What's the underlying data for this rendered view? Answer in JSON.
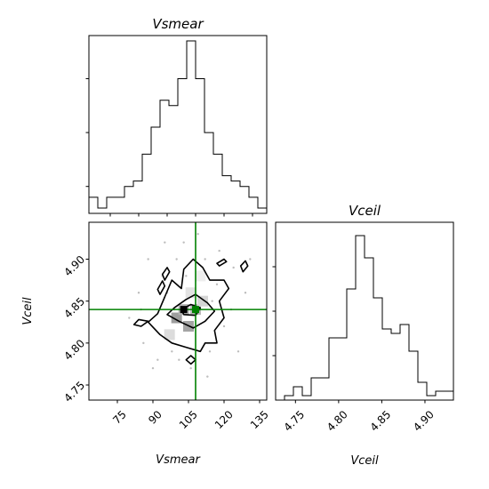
{
  "chart_data": [
    {
      "panel": "top-left",
      "type": "histogram",
      "title": "Vsmear",
      "xlim": [
        63,
        138
      ],
      "ylim": [
        0,
        33
      ],
      "grid": false,
      "bin_edges": [
        63,
        66.75,
        70.5,
        74.25,
        78,
        81.75,
        85.5,
        89.25,
        93,
        96.75,
        100.5,
        104.25,
        108,
        111.75,
        115.5,
        119.25,
        123,
        126.75,
        130.5,
        134.25,
        138
      ],
      "counts": [
        3,
        1,
        3,
        3,
        5,
        6,
        11,
        16,
        21,
        20,
        25,
        32,
        25,
        15,
        11,
        7,
        6,
        5,
        3,
        1
      ]
    },
    {
      "panel": "bottom-right",
      "type": "histogram",
      "title": "Vceil",
      "xlabel": "Vceil",
      "xlim": [
        4.727,
        4.933
      ],
      "ylim": [
        0,
        40
      ],
      "grid": false,
      "x_ticks": [
        "4.75",
        "4.80",
        "4.85",
        "4.90"
      ],
      "bin_edges": [
        4.727,
        4.7373,
        4.7476,
        4.7579,
        4.7682,
        4.7785,
        4.7888,
        4.7991,
        4.8094,
        4.8197,
        4.83,
        4.8403,
        4.8506,
        4.8609,
        4.8712,
        4.8815,
        4.8918,
        4.9021,
        4.9124,
        4.9227,
        4.933
      ],
      "counts": [
        0,
        1,
        3,
        1,
        5,
        5,
        14,
        14,
        25,
        37,
        32,
        23,
        16,
        15,
        17,
        11,
        4,
        1,
        2,
        2
      ]
    },
    {
      "panel": "bottom-left",
      "type": "scatter",
      "subtype": "2d-density-contour",
      "xlabel": "Vsmear",
      "ylabel": "Vceil",
      "xlim": [
        63,
        138
      ],
      "ylim": [
        4.732,
        4.944
      ],
      "grid": false,
      "x_ticks": [
        "75",
        "90",
        "105",
        "120",
        "135"
      ],
      "y_ticks": [
        "4.75",
        "4.80",
        "4.85",
        "4.90"
      ],
      "truth": {
        "x": 108,
        "y": 4.84,
        "color": "#008000"
      },
      "density_cells": [
        {
          "x": 100,
          "y": 4.83,
          "level": 0.7
        },
        {
          "x": 103,
          "y": 4.84,
          "level": 0.55
        },
        {
          "x": 105,
          "y": 4.82,
          "level": 0.65
        },
        {
          "x": 108,
          "y": 4.84,
          "level": 0.5
        },
        {
          "x": 111,
          "y": 4.85,
          "level": 0.3
        },
        {
          "x": 106,
          "y": 4.86,
          "level": 0.2
        },
        {
          "x": 97,
          "y": 4.81,
          "level": 0.25
        },
        {
          "x": 110,
          "y": 4.88,
          "level": 0.12
        }
      ],
      "points": [
        [
          80,
          4.83
        ],
        [
          84,
          4.86
        ],
        [
          86,
          4.8
        ],
        [
          88,
          4.9
        ],
        [
          92,
          4.78
        ],
        [
          94,
          4.88
        ],
        [
          96,
          4.86
        ],
        [
          98,
          4.79
        ],
        [
          100,
          4.9
        ],
        [
          103,
          4.92
        ],
        [
          106,
          4.77
        ],
        [
          112,
          4.9
        ],
        [
          114,
          4.79
        ],
        [
          117,
          4.87
        ],
        [
          120,
          4.82
        ],
        [
          123,
          4.84
        ],
        [
          126,
          4.79
        ],
        [
          129,
          4.86
        ],
        [
          131,
          4.9
        ],
        [
          118,
          4.91
        ],
        [
          90,
          4.77
        ],
        [
          95,
          4.92
        ],
        [
          109,
          4.93
        ],
        [
          85,
          4.84
        ],
        [
          124,
          4.89
        ],
        [
          113,
          4.76
        ],
        [
          104,
          4.88
        ],
        [
          101,
          4.78
        ],
        [
          115,
          4.85
        ],
        [
          99,
          4.84
        ]
      ],
      "contours": [
        {
          "level": "outer",
          "points": [
            [
              95,
              4.855
            ],
            [
              98,
              4.875
            ],
            [
              102,
              4.865
            ],
            [
              103,
              4.888
            ],
            [
              107,
              4.9
            ],
            [
              111,
              4.89
            ],
            [
              114,
              4.875
            ],
            [
              120,
              4.875
            ],
            [
              122,
              4.865
            ],
            [
              118,
              4.85
            ],
            [
              120,
              4.83
            ],
            [
              116,
              4.815
            ],
            [
              117,
              4.8
            ],
            [
              112,
              4.8
            ],
            [
              110,
              4.79
            ],
            [
              104,
              4.795
            ],
            [
              98,
              4.8
            ],
            [
              93,
              4.81
            ],
            [
              88,
              4.825
            ],
            [
              92,
              4.835
            ]
          ]
        },
        {
          "level": "inner",
          "points": [
            [
              99,
              4.842
            ],
            [
              104,
              4.852
            ],
            [
              108,
              4.858
            ],
            [
              113,
              4.848
            ],
            [
              116,
              4.838
            ],
            [
              112,
              4.826
            ],
            [
              107,
              4.818
            ],
            [
              101,
              4.826
            ],
            [
              96,
              4.834
            ]
          ]
        },
        {
          "level": "core",
          "points": [
            [
              102,
              4.84
            ],
            [
              106,
              4.846
            ],
            [
              110,
              4.842
            ],
            [
              108,
              4.833
            ],
            [
              103,
              4.834
            ]
          ]
        },
        {
          "level": "island",
          "points": [
            [
              85,
              4.82
            ],
            [
              88,
              4.826
            ],
            [
              84,
              4.828
            ],
            [
              82,
              4.822
            ]
          ]
        },
        {
          "level": "island",
          "points": [
            [
              93,
              4.858
            ],
            [
              95,
              4.868
            ],
            [
              94,
              4.874
            ],
            [
              92,
              4.864
            ]
          ]
        },
        {
          "level": "island",
          "points": [
            [
              118,
              4.892
            ],
            [
              121,
              4.897
            ],
            [
              120,
              4.9
            ],
            [
              117,
              4.895
            ]
          ]
        },
        {
          "level": "island",
          "points": [
            [
              128,
              4.885
            ],
            [
              130,
              4.892
            ],
            [
              129,
              4.898
            ],
            [
              127,
              4.892
            ]
          ]
        },
        {
          "level": "island",
          "points": [
            [
              106,
              4.775
            ],
            [
              108,
              4.78
            ],
            [
              106,
              4.785
            ],
            [
              104,
              4.78
            ]
          ]
        },
        {
          "level": "island",
          "points": [
            [
              95,
              4.875
            ],
            [
              97,
              4.885
            ],
            [
              96,
              4.89
            ],
            [
              94,
              4.882
            ]
          ]
        }
      ]
    }
  ]
}
